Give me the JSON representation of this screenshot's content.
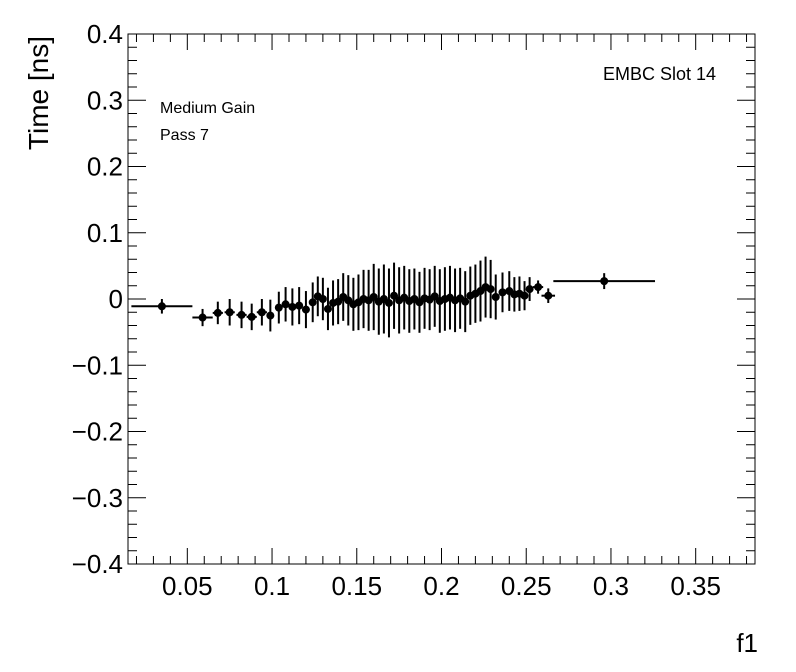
{
  "chart_data": {
    "type": "scatter",
    "xlabel": "f1",
    "ylabel": "Time [ns]",
    "xlim": [
      0.015,
      0.385
    ],
    "ylim": [
      -0.4,
      0.4
    ],
    "x_ticks": [
      "0.05",
      "0.1",
      "0.15",
      "0.2",
      "0.25",
      "0.3",
      "0.35"
    ],
    "y_ticks": [
      "−0.4",
      "−0.3",
      "−0.2",
      "−0.1",
      "0",
      "0.1",
      "0.2",
      "0.3",
      "0.4"
    ],
    "annotations": {
      "top_right": "EMBC Slot 14",
      "line1": "Medium Gain",
      "line2": "Pass 7"
    },
    "grid": false,
    "points": [
      {
        "x": 0.035,
        "y": -0.011,
        "xerr": 0.018,
        "yerr": 0.011
      },
      {
        "x": 0.059,
        "y": -0.028,
        "xerr": 0.006,
        "yerr": 0.013
      },
      {
        "x": 0.068,
        "y": -0.021,
        "xerr": 0.003,
        "yerr": 0.017
      },
      {
        "x": 0.075,
        "y": -0.02,
        "xerr": 0.003,
        "yerr": 0.02
      },
      {
        "x": 0.082,
        "y": -0.024,
        "xerr": 0.003,
        "yerr": 0.02
      },
      {
        "x": 0.088,
        "y": -0.027,
        "xerr": 0.003,
        "yerr": 0.02
      },
      {
        "x": 0.094,
        "y": -0.02,
        "xerr": 0.003,
        "yerr": 0.02
      },
      {
        "x": 0.099,
        "y": -0.025,
        "xerr": 0.002,
        "yerr": 0.024
      },
      {
        "x": 0.104,
        "y": -0.013,
        "xerr": 0.002,
        "yerr": 0.024
      },
      {
        "x": 0.108,
        "y": -0.008,
        "xerr": 0.002,
        "yerr": 0.026
      },
      {
        "x": 0.112,
        "y": -0.012,
        "xerr": 0.002,
        "yerr": 0.028
      },
      {
        "x": 0.116,
        "y": -0.01,
        "xerr": 0.002,
        "yerr": 0.028
      },
      {
        "x": 0.12,
        "y": -0.016,
        "xerr": 0.002,
        "yerr": 0.028
      },
      {
        "x": 0.124,
        "y": -0.005,
        "xerr": 0.002,
        "yerr": 0.03
      },
      {
        "x": 0.127,
        "y": 0.004,
        "xerr": 0.002,
        "yerr": 0.03
      },
      {
        "x": 0.13,
        "y": 0.0,
        "xerr": 0.002,
        "yerr": 0.032
      },
      {
        "x": 0.133,
        "y": -0.015,
        "xerr": 0.002,
        "yerr": 0.032
      },
      {
        "x": 0.136,
        "y": -0.006,
        "xerr": 0.002,
        "yerr": 0.034
      },
      {
        "x": 0.139,
        "y": -0.004,
        "xerr": 0.002,
        "yerr": 0.034
      },
      {
        "x": 0.142,
        "y": 0.003,
        "xerr": 0.002,
        "yerr": 0.036
      },
      {
        "x": 0.145,
        "y": -0.002,
        "xerr": 0.001,
        "yerr": 0.038
      },
      {
        "x": 0.148,
        "y": -0.008,
        "xerr": 0.001,
        "yerr": 0.04
      },
      {
        "x": 0.151,
        "y": -0.005,
        "xerr": 0.001,
        "yerr": 0.042
      },
      {
        "x": 0.154,
        "y": 0.0,
        "xerr": 0.001,
        "yerr": 0.044
      },
      {
        "x": 0.157,
        "y": -0.002,
        "xerr": 0.001,
        "yerr": 0.046
      },
      {
        "x": 0.16,
        "y": 0.003,
        "xerr": 0.001,
        "yerr": 0.05
      },
      {
        "x": 0.163,
        "y": -0.004,
        "xerr": 0.001,
        "yerr": 0.05
      },
      {
        "x": 0.166,
        "y": 0.0,
        "xerr": 0.001,
        "yerr": 0.052
      },
      {
        "x": 0.169,
        "y": -0.006,
        "xerr": 0.001,
        "yerr": 0.052
      },
      {
        "x": 0.172,
        "y": 0.005,
        "xerr": 0.001,
        "yerr": 0.05
      },
      {
        "x": 0.175,
        "y": -0.002,
        "xerr": 0.001,
        "yerr": 0.05
      },
      {
        "x": 0.178,
        "y": 0.002,
        "xerr": 0.001,
        "yerr": 0.048
      },
      {
        "x": 0.181,
        "y": -0.003,
        "xerr": 0.001,
        "yerr": 0.048
      },
      {
        "x": 0.184,
        "y": 0.0,
        "xerr": 0.001,
        "yerr": 0.046
      },
      {
        "x": 0.187,
        "y": -0.005,
        "xerr": 0.001,
        "yerr": 0.046
      },
      {
        "x": 0.19,
        "y": 0.001,
        "xerr": 0.001,
        "yerr": 0.046
      },
      {
        "x": 0.193,
        "y": -0.001,
        "xerr": 0.001,
        "yerr": 0.046
      },
      {
        "x": 0.196,
        "y": 0.004,
        "xerr": 0.001,
        "yerr": 0.046
      },
      {
        "x": 0.199,
        "y": -0.003,
        "xerr": 0.001,
        "yerr": 0.048
      },
      {
        "x": 0.202,
        "y": 0.0,
        "xerr": 0.001,
        "yerr": 0.048
      },
      {
        "x": 0.205,
        "y": 0.002,
        "xerr": 0.001,
        "yerr": 0.048
      },
      {
        "x": 0.208,
        "y": -0.002,
        "xerr": 0.001,
        "yerr": 0.048
      },
      {
        "x": 0.211,
        "y": 0.001,
        "xerr": 0.001,
        "yerr": 0.046
      },
      {
        "x": 0.214,
        "y": -0.004,
        "xerr": 0.001,
        "yerr": 0.046
      },
      {
        "x": 0.217,
        "y": 0.005,
        "xerr": 0.001,
        "yerr": 0.044
      },
      {
        "x": 0.22,
        "y": 0.008,
        "xerr": 0.001,
        "yerr": 0.044
      },
      {
        "x": 0.223,
        "y": 0.012,
        "xerr": 0.001,
        "yerr": 0.046
      },
      {
        "x": 0.226,
        "y": 0.018,
        "xerr": 0.001,
        "yerr": 0.046
      },
      {
        "x": 0.229,
        "y": 0.015,
        "xerr": 0.001,
        "yerr": 0.044
      },
      {
        "x": 0.232,
        "y": 0.003,
        "xerr": 0.002,
        "yerr": 0.034
      },
      {
        "x": 0.236,
        "y": 0.01,
        "xerr": 0.002,
        "yerr": 0.03
      },
      {
        "x": 0.24,
        "y": 0.012,
        "xerr": 0.002,
        "yerr": 0.03
      },
      {
        "x": 0.243,
        "y": 0.007,
        "xerr": 0.002,
        "yerr": 0.026
      },
      {
        "x": 0.246,
        "y": 0.008,
        "xerr": 0.002,
        "yerr": 0.026
      },
      {
        "x": 0.249,
        "y": 0.005,
        "xerr": 0.002,
        "yerr": 0.022
      },
      {
        "x": 0.252,
        "y": 0.015,
        "xerr": 0.002,
        "yerr": 0.018
      },
      {
        "x": 0.257,
        "y": 0.018,
        "xerr": 0.003,
        "yerr": 0.01
      },
      {
        "x": 0.263,
        "y": 0.005,
        "xerr": 0.004,
        "yerr": 0.011
      },
      {
        "x": 0.296,
        "y": 0.027,
        "xerr": 0.03,
        "yerr": 0.012
      }
    ]
  }
}
